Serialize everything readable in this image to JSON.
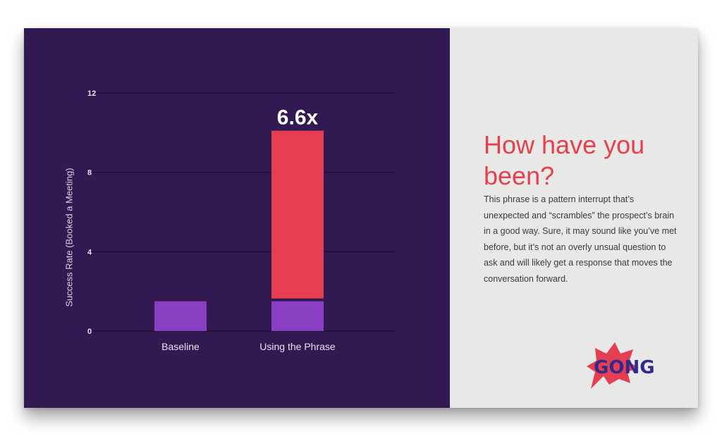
{
  "chart_data": {
    "type": "bar",
    "stacked": true,
    "categories": [
      "Baseline",
      "Using the Phrase"
    ],
    "series": [
      {
        "values": [
          1.5,
          1.5
        ],
        "color": "#8a3fc3"
      },
      {
        "values": [
          0,
          8.6
        ],
        "color": "#e63e51"
      }
    ],
    "ylabel": "Success Rate (Booked a Meeting)",
    "ylim": [
      0,
      12
    ],
    "yticks": [
      0,
      4,
      8,
      12
    ],
    "ytick_labels": [
      "0",
      "4",
      "8",
      "12"
    ],
    "annotations": [
      {
        "category": "Using the Phrase",
        "text": "6.6x"
      }
    ],
    "grid": true
  },
  "colors": {
    "chart_background": "#321952",
    "baseline_bar": "#8a3fc3",
    "uplift_bar": "#e63e51",
    "heading": "#e4414f",
    "panel_background": "#e8e8e6"
  },
  "side_panel": {
    "heading": "How have you been?",
    "body": "This phrase is a pattern interrupt that’s unexpected and “scrambles” the prospect’s brain in a good way. Sure, it may sound like you’ve met before, but it’s not an overly unsual question to ask and will likely get a response that moves the conversation forward."
  },
  "logo": {
    "text": "GONG",
    "icon": "gong-starburst-logo"
  }
}
